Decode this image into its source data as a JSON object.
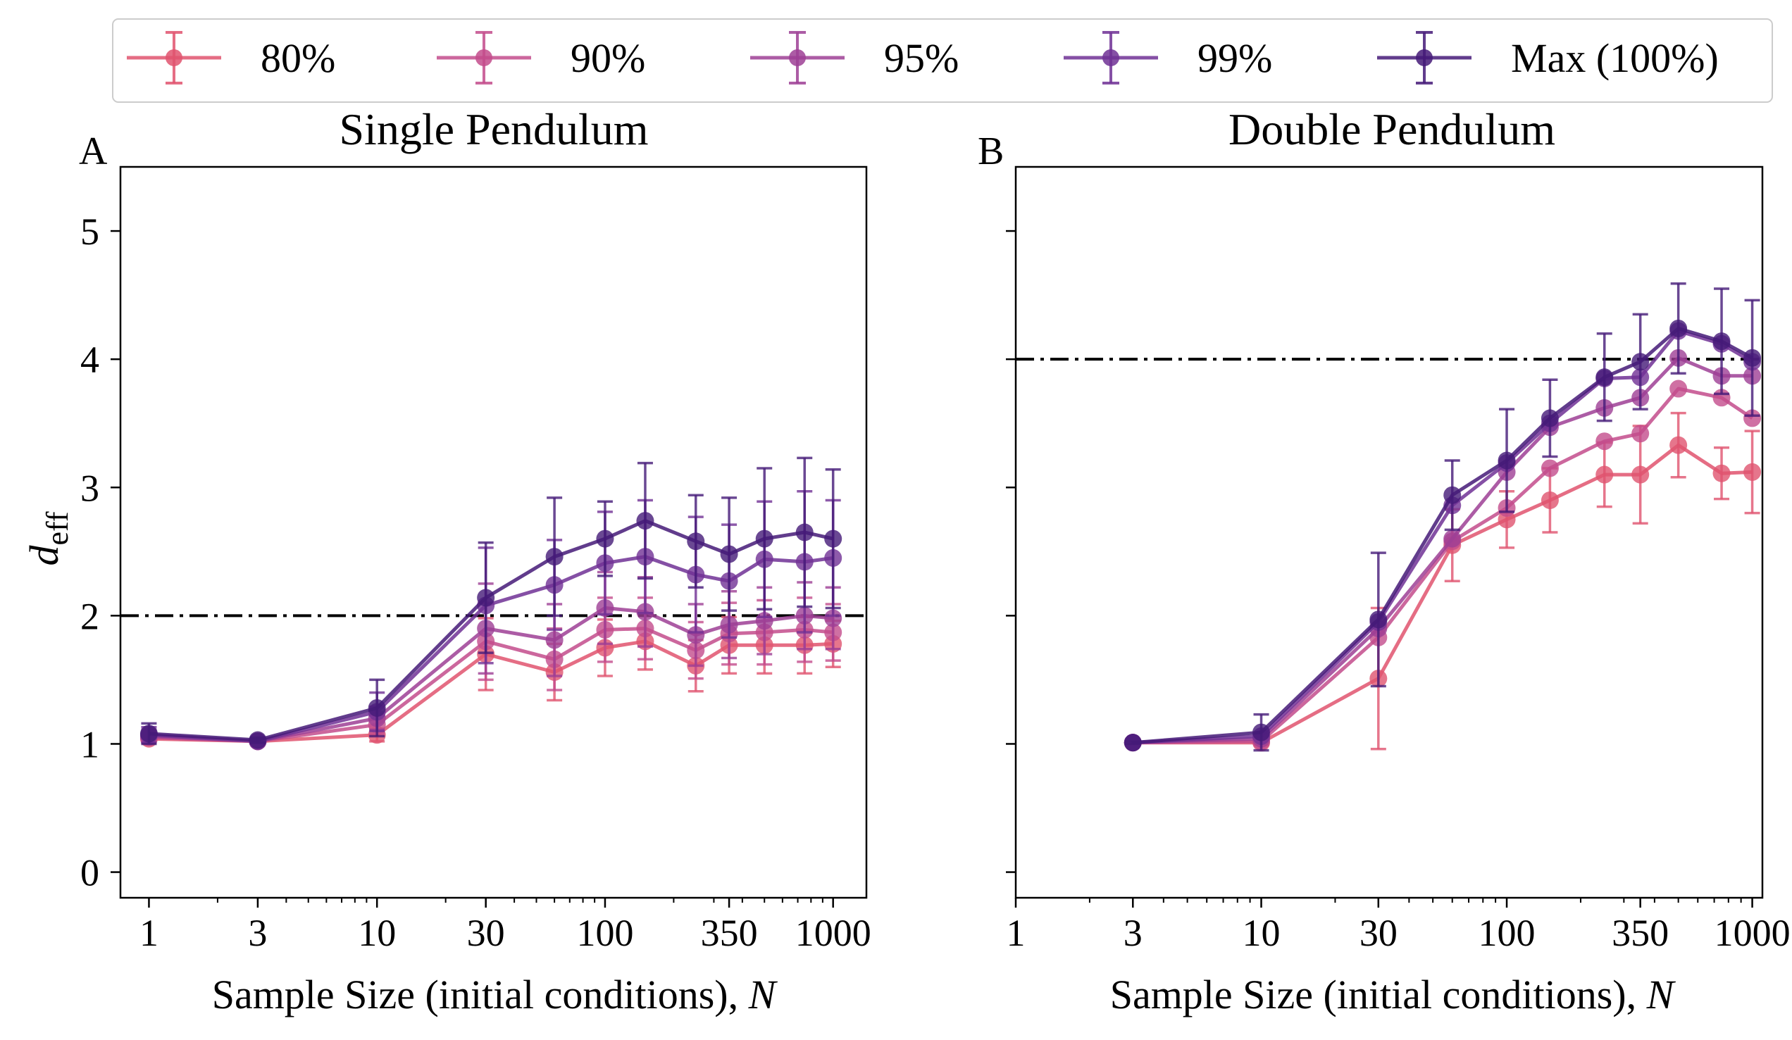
{
  "figure": {
    "legend": [
      {
        "label": "80%",
        "color": "#e0546f"
      },
      {
        "label": "90%",
        "color": "#c34c8c"
      },
      {
        "label": "95%",
        "color": "#9d3f95"
      },
      {
        "label": "99%",
        "color": "#703195"
      },
      {
        "label": "Max (100%)",
        "color": "#451a78"
      }
    ],
    "ylabel_main": "d",
    "ylabel_sub": "eff",
    "xlabel_main": "Sample Size (initial conditions), ",
    "xlabel_var": "N"
  },
  "chart_data": [
    {
      "type": "line",
      "panel_letter": "A",
      "title": "Single Pendulum",
      "xscale": "log",
      "xlim": [
        0.75,
        1400
      ],
      "ylim": [
        -0.2,
        5.5
      ],
      "xticks": [
        1,
        3,
        10,
        30,
        100,
        350,
        1000
      ],
      "xtick_labels": [
        "1",
        "3",
        "10",
        "30",
        "100",
        "350",
        "1000"
      ],
      "yticks": [
        0,
        1,
        2,
        3,
        4,
        5
      ],
      "ytick_labels": [
        "0",
        "1",
        "2",
        "3",
        "4",
        "5"
      ],
      "reference_line": 2,
      "x": [
        1,
        3,
        10,
        30,
        60,
        100,
        150,
        250,
        350,
        500,
        750,
        1000
      ],
      "series": [
        {
          "name": "80%",
          "values": [
            1.04,
            1.02,
            1.07,
            1.7,
            1.56,
            1.75,
            1.8,
            1.61,
            1.77,
            1.77,
            1.77,
            1.78
          ],
          "errors": [
            0.03,
            0.01,
            0.05,
            0.28,
            0.22,
            0.22,
            0.22,
            0.2,
            0.22,
            0.22,
            0.22,
            0.18
          ]
        },
        {
          "name": "90%",
          "values": [
            1.05,
            1.02,
            1.15,
            1.8,
            1.66,
            1.89,
            1.9,
            1.73,
            1.86,
            1.87,
            1.89,
            1.87
          ],
          "errors": [
            0.04,
            0.01,
            0.07,
            0.3,
            0.24,
            0.25,
            0.24,
            0.22,
            0.24,
            0.25,
            0.25,
            0.22
          ]
        },
        {
          "name": "95%",
          "values": [
            1.06,
            1.02,
            1.2,
            1.9,
            1.81,
            2.06,
            2.03,
            1.85,
            1.93,
            1.96,
            2.0,
            1.98
          ],
          "errors": [
            0.05,
            0.01,
            0.09,
            0.35,
            0.28,
            0.28,
            0.27,
            0.24,
            0.26,
            0.26,
            0.26,
            0.24
          ]
        },
        {
          "name": "99%",
          "values": [
            1.07,
            1.02,
            1.25,
            2.08,
            2.24,
            2.41,
            2.46,
            2.32,
            2.27,
            2.44,
            2.42,
            2.45
          ],
          "errors": [
            0.06,
            0.02,
            0.15,
            0.45,
            0.35,
            0.4,
            0.44,
            0.45,
            0.44,
            0.45,
            0.55,
            0.45
          ]
        },
        {
          "name": "Max (100%)",
          "values": [
            1.08,
            1.03,
            1.28,
            2.14,
            2.46,
            2.6,
            2.74,
            2.58,
            2.48,
            2.6,
            2.65,
            2.6
          ],
          "errors": [
            0.08,
            0.02,
            0.22,
            0.43,
            0.46,
            0.29,
            0.45,
            0.36,
            0.44,
            0.55,
            0.58,
            0.54
          ]
        }
      ]
    },
    {
      "type": "line",
      "panel_letter": "B",
      "title": "Double Pendulum",
      "xscale": "log",
      "xlim": [
        1,
        1100
      ],
      "ylim": [
        -0.2,
        5.5
      ],
      "xticks": [
        1,
        3,
        10,
        30,
        100,
        350,
        1000
      ],
      "xtick_labels": [
        "1",
        "3",
        "10",
        "30",
        "100",
        "350",
        "1000"
      ],
      "yticks": [
        0,
        1,
        2,
        3,
        4,
        5
      ],
      "ytick_labels": [],
      "reference_line": 4,
      "x": [
        3,
        10,
        30,
        60,
        100,
        150,
        250,
        350,
        500,
        750,
        1000
      ],
      "series": [
        {
          "name": "80%",
          "values": [
            1.01,
            1.01,
            1.51,
            2.55,
            2.75,
            2.9,
            3.1,
            3.1,
            3.33,
            3.11,
            3.12
          ],
          "errors": [
            0.01,
            0.02,
            0.55,
            0.28,
            0.22,
            0.25,
            0.25,
            0.38,
            0.25,
            0.2,
            0.32
          ]
        },
        {
          "name": "90%",
          "values": [
            1.01,
            1.02,
            1.83,
            2.58,
            2.84,
            3.15,
            3.36,
            3.42,
            3.77,
            3.7,
            3.54
          ]
        },
        {
          "name": "95%",
          "values": [
            1.01,
            1.04,
            1.9,
            2.6,
            3.12,
            3.47,
            3.62,
            3.7,
            4.01,
            3.87,
            3.87
          ]
        },
        {
          "name": "99%",
          "values": [
            1.01,
            1.06,
            1.95,
            2.86,
            3.19,
            3.5,
            3.85,
            3.86,
            4.22,
            4.12,
            3.98
          ]
        },
        {
          "name": "Max (100%)",
          "values": [
            1.01,
            1.09,
            1.97,
            2.94,
            3.21,
            3.54,
            3.86,
            3.98,
            4.24,
            4.14,
            4.01
          ],
          "errors": [
            0.01,
            0.14,
            0.52,
            0.27,
            0.4,
            0.3,
            0.34,
            0.37,
            0.35,
            0.41,
            0.45
          ]
        }
      ]
    }
  ]
}
